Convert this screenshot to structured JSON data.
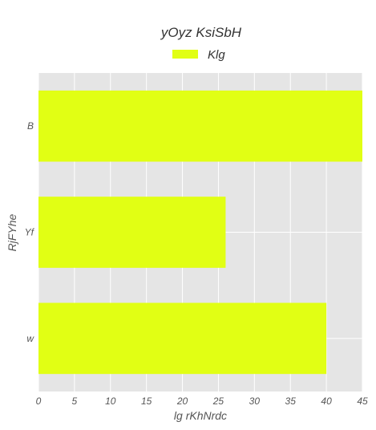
{
  "chart_data": {
    "type": "bar",
    "orientation": "horizontal",
    "title": "yOyz   KsiSbH",
    "xlabel": "lg rKhNrdc",
    "ylabel": "RjFYhe",
    "categories": [
      "B",
      "Yf",
      "w"
    ],
    "series": [
      {
        "name": "Klg",
        "values": [
          45,
          26,
          40
        ],
        "color": "#e1ff14"
      }
    ],
    "xlim": [
      0,
      45
    ],
    "xticks": [
      "0",
      "5",
      "10",
      "15",
      "20",
      "25",
      "30",
      "35",
      "40",
      "45"
    ],
    "grid": true,
    "legend_position": "top-center",
    "plot_background": "#e5e5e5"
  }
}
